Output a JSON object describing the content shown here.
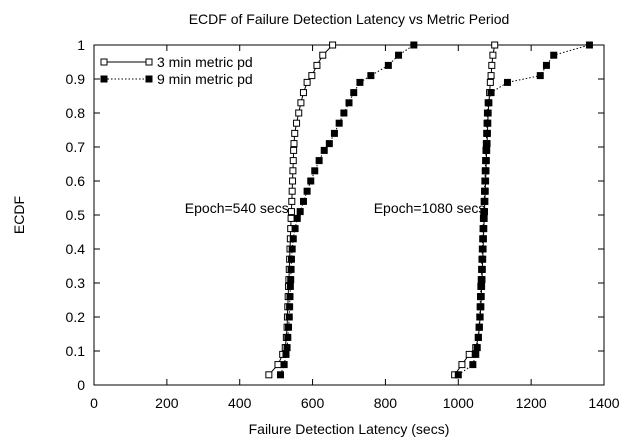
{
  "chart_data": {
    "type": "scatter",
    "title": "ECDF of Failure Detection Latency vs Metric Period",
    "xlabel": "Failure Detection Latency (secs)",
    "ylabel": "ECDF",
    "xlim": [
      0,
      1400
    ],
    "ylim": [
      0,
      1
    ],
    "x_ticks": [
      0,
      200,
      400,
      600,
      800,
      1000,
      1200,
      1400
    ],
    "y_ticks": [
      0,
      0.1,
      0.2,
      0.3,
      0.4,
      0.5,
      0.6,
      0.7,
      0.8,
      0.9,
      1
    ],
    "grid": false,
    "legend_position": "top-left",
    "annotations": [
      {
        "text": "Epoch=540 secs",
        "x": 540,
        "y": 0.5
      },
      {
        "text": "Epoch=1080 secs",
        "x": 1080,
        "y": 0.5
      }
    ],
    "series": [
      {
        "name": "3 min metric pd",
        "marker": "open-square",
        "line": "solid",
        "color": "#000000",
        "groups": [
          [
            [
              480,
              0.03
            ],
            [
              505,
              0.06
            ],
            [
              518,
              0.09
            ],
            [
              525,
              0.11
            ],
            [
              528,
              0.14
            ],
            [
              530,
              0.17
            ],
            [
              531,
              0.2
            ],
            [
              532,
              0.23
            ],
            [
              533,
              0.26
            ],
            [
              534,
              0.29
            ],
            [
              535,
              0.31
            ],
            [
              536,
              0.34
            ],
            [
              537,
              0.37
            ],
            [
              538,
              0.4
            ],
            [
              539,
              0.43
            ],
            [
              540,
              0.46
            ],
            [
              541,
              0.49
            ],
            [
              542,
              0.51
            ],
            [
              543,
              0.54
            ],
            [
              544,
              0.57
            ],
            [
              545,
              0.6
            ],
            [
              546,
              0.63
            ],
            [
              547,
              0.66
            ],
            [
              548,
              0.69
            ],
            [
              549,
              0.71
            ],
            [
              551,
              0.74
            ],
            [
              556,
              0.77
            ],
            [
              562,
              0.8
            ],
            [
              568,
              0.83
            ],
            [
              575,
              0.86
            ],
            [
              585,
              0.89
            ],
            [
              598,
              0.91
            ],
            [
              612,
              0.94
            ],
            [
              628,
              0.97
            ],
            [
              655,
              1.0
            ]
          ],
          [
            [
              990,
              0.03
            ],
            [
              1010,
              0.06
            ],
            [
              1030,
              0.09
            ],
            [
              1048,
              0.11
            ],
            [
              1055,
              0.14
            ],
            [
              1058,
              0.17
            ],
            [
              1060,
              0.2
            ],
            [
              1062,
              0.23
            ],
            [
              1063,
              0.26
            ],
            [
              1064,
              0.29
            ],
            [
              1065,
              0.31
            ],
            [
              1066,
              0.34
            ],
            [
              1067,
              0.37
            ],
            [
              1068,
              0.4
            ],
            [
              1069,
              0.43
            ],
            [
              1070,
              0.46
            ],
            [
              1071,
              0.49
            ],
            [
              1072,
              0.51
            ],
            [
              1073,
              0.54
            ],
            [
              1074,
              0.57
            ],
            [
              1075,
              0.6
            ],
            [
              1076,
              0.63
            ],
            [
              1077,
              0.66
            ],
            [
              1078,
              0.69
            ],
            [
              1079,
              0.71
            ],
            [
              1080,
              0.74
            ],
            [
              1081,
              0.77
            ],
            [
              1082,
              0.8
            ],
            [
              1084,
              0.83
            ],
            [
              1086,
              0.86
            ],
            [
              1088,
              0.89
            ],
            [
              1090,
              0.91
            ],
            [
              1092,
              0.94
            ],
            [
              1095,
              0.97
            ],
            [
              1100,
              1.0
            ]
          ]
        ]
      },
      {
        "name": "9 min metric pd",
        "marker": "filled-square",
        "line": "dotted",
        "color": "#000000",
        "groups": [
          [
            [
              512,
              0.03
            ],
            [
              522,
              0.06
            ],
            [
              527,
              0.09
            ],
            [
              530,
              0.11
            ],
            [
              532,
              0.14
            ],
            [
              534,
              0.17
            ],
            [
              536,
              0.2
            ],
            [
              537,
              0.23
            ],
            [
              538,
              0.26
            ],
            [
              539,
              0.29
            ],
            [
              540,
              0.31
            ],
            [
              541,
              0.34
            ],
            [
              542,
              0.37
            ],
            [
              544,
              0.4
            ],
            [
              547,
              0.43
            ],
            [
              552,
              0.46
            ],
            [
              558,
              0.49
            ],
            [
              566,
              0.51
            ],
            [
              575,
              0.54
            ],
            [
              585,
              0.57
            ],
            [
              595,
              0.6
            ],
            [
              606,
              0.63
            ],
            [
              618,
              0.66
            ],
            [
              632,
              0.69
            ],
            [
              646,
              0.71
            ],
            [
              660,
              0.74
            ],
            [
              673,
              0.77
            ],
            [
              686,
              0.8
            ],
            [
              700,
              0.83
            ],
            [
              713,
              0.86
            ],
            [
              730,
              0.89
            ],
            [
              760,
              0.91
            ],
            [
              808,
              0.94
            ],
            [
              836,
              0.97
            ],
            [
              878,
              1.0
            ]
          ],
          [
            [
              1000,
              0.03
            ],
            [
              1040,
              0.06
            ],
            [
              1048,
              0.09
            ],
            [
              1052,
              0.11
            ],
            [
              1055,
              0.14
            ],
            [
              1057,
              0.17
            ],
            [
              1059,
              0.2
            ],
            [
              1060,
              0.23
            ],
            [
              1061,
              0.26
            ],
            [
              1062,
              0.29
            ],
            [
              1063,
              0.31
            ],
            [
              1064,
              0.34
            ],
            [
              1065,
              0.37
            ],
            [
              1066,
              0.4
            ],
            [
              1067,
              0.43
            ],
            [
              1068,
              0.46
            ],
            [
              1069,
              0.49
            ],
            [
              1070,
              0.51
            ],
            [
              1071,
              0.54
            ],
            [
              1072,
              0.57
            ],
            [
              1073,
              0.6
            ],
            [
              1074,
              0.63
            ],
            [
              1075,
              0.66
            ],
            [
              1076,
              0.69
            ],
            [
              1077,
              0.71
            ],
            [
              1078,
              0.74
            ],
            [
              1079,
              0.77
            ],
            [
              1080,
              0.8
            ],
            [
              1082,
              0.83
            ],
            [
              1090,
              0.86
            ],
            [
              1135,
              0.89
            ],
            [
              1225,
              0.91
            ],
            [
              1242,
              0.94
            ],
            [
              1262,
              0.97
            ],
            [
              1360,
              1.0
            ]
          ]
        ]
      }
    ]
  }
}
